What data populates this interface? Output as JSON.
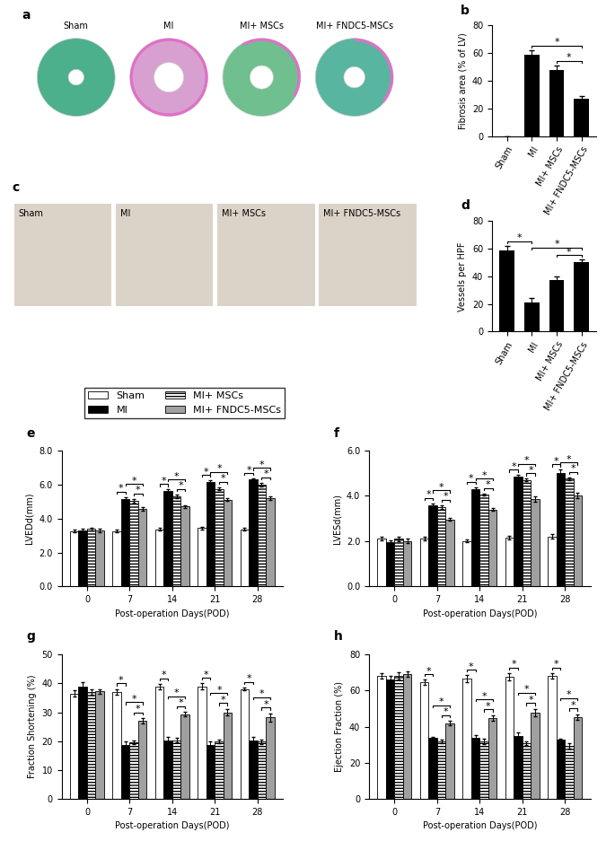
{
  "chart_data": [
    {
      "type": "image",
      "title": "a",
      "categories": [
        "Sham",
        "MI",
        "MI+ MSCs",
        "MI+ FNDC5-MSCs"
      ]
    },
    {
      "type": "bar",
      "title": "b",
      "ylabel": "Fibrosis area (% of LV)",
      "categories": [
        "Sham",
        "MI",
        "MI+ MSCs",
        "MI+ FNDC5-MSCs"
      ],
      "values": [
        0,
        59,
        48,
        27
      ],
      "errors": [
        0,
        3,
        3,
        2
      ],
      "color": "#000000",
      "ylim": [
        0,
        80
      ],
      "yticks": [
        0,
        20,
        40,
        60,
        80
      ],
      "annotations": [
        {
          "pair": [
            "MI+ MSCs",
            "MI+ FNDC5-MSCs"
          ],
          "label": "*"
        },
        {
          "pair": [
            "MI",
            "MI+ FNDC5-MSCs"
          ],
          "label": "*"
        }
      ]
    },
    {
      "type": "image",
      "title": "c",
      "categories": [
        "Sham",
        "MI",
        "MI+ MSCs",
        "MI+ FNDC5-MSCs"
      ]
    },
    {
      "type": "bar",
      "title": "d",
      "ylabel": "Vessels per HPF",
      "categories": [
        "Sham",
        "MI",
        "MI+ MSCs",
        "MI+ FNDC5-MSCs"
      ],
      "values": [
        59,
        21,
        37,
        50
      ],
      "errors": [
        3,
        3,
        3,
        2
      ],
      "color": "#000000",
      "ylim": [
        0,
        80
      ],
      "yticks": [
        0,
        20,
        40,
        60,
        80
      ],
      "annotations": [
        {
          "pair": [
            "Sham",
            "MI"
          ],
          "label": "*"
        },
        {
          "pair": [
            "MI+ MSCs",
            "MI+ FNDC5-MSCs"
          ],
          "label": "*"
        },
        {
          "pair": [
            "MI",
            "MI+ FNDC5-MSCs"
          ],
          "label": "*"
        }
      ]
    },
    {
      "type": "grouped_bar",
      "title": "e",
      "ylabel": "LVEDd(mm)",
      "xlabel": "Post-operation Days(POD)",
      "legend": "upper center",
      "categories": [
        "0",
        "7",
        "14",
        "21",
        "28"
      ],
      "series": [
        {
          "name": "Sham",
          "color": "#ffffff",
          "values": [
            3.25,
            3.25,
            3.35,
            3.45,
            3.35
          ],
          "errors": [
            0.08,
            0.08,
            0.08,
            0.08,
            0.08
          ]
        },
        {
          "name": "MI",
          "color": "#000000",
          "values": [
            3.3,
            5.15,
            5.6,
            6.15,
            6.3
          ],
          "errors": [
            0.1,
            0.1,
            0.1,
            0.1,
            0.05
          ]
        },
        {
          "name": "MI+ MSCs",
          "color": "#ffffff",
          "values": [
            3.4,
            5.05,
            5.3,
            5.75,
            6.0
          ],
          "errors": [
            0.08,
            0.1,
            0.12,
            0.1,
            0.1
          ]
        },
        {
          "name": "MI+ FNDC5-MSCs",
          "color": "#a0a0a0",
          "values": [
            3.3,
            4.55,
            4.7,
            5.1,
            5.2
          ],
          "errors": [
            0.1,
            0.1,
            0.1,
            0.08,
            0.1
          ]
        }
      ],
      "ylim": [
        0,
        8
      ],
      "yticks": [
        {
          "value": 0,
          "label": "0.0"
        },
        {
          "value": 2,
          "label": "2.0"
        },
        {
          "value": 4,
          "label": "4.0"
        },
        {
          "value": 6,
          "label": "6.0"
        },
        {
          "value": 8,
          "label": "8.0"
        }
      ],
      "annotations": [
        {
          "category": "7",
          "pair": [
            "Sham",
            "MI"
          ],
          "label": "*"
        },
        {
          "category": "7",
          "pair": [
            "MI+ MSCs",
            "MI+ FNDC5-MSCs"
          ],
          "label": "*"
        },
        {
          "category": "7",
          "pair": [
            "MI",
            "MI+ FNDC5-MSCs"
          ],
          "label": "*"
        },
        {
          "category": "14",
          "pair": [
            "Sham",
            "MI"
          ],
          "label": "*"
        },
        {
          "category": "14",
          "pair": [
            "MI+ MSCs",
            "MI+ FNDC5-MSCs"
          ],
          "label": "*"
        },
        {
          "category": "14",
          "pair": [
            "MI",
            "MI+ FNDC5-MSCs"
          ],
          "label": "*"
        },
        {
          "category": "21",
          "pair": [
            "Sham",
            "MI"
          ],
          "label": "*"
        },
        {
          "category": "21",
          "pair": [
            "MI+ MSCs",
            "MI+ FNDC5-MSCs"
          ],
          "label": "*"
        },
        {
          "category": "21",
          "pair": [
            "MI",
            "MI+ FNDC5-MSCs"
          ],
          "label": "*"
        },
        {
          "category": "28",
          "pair": [
            "Sham",
            "MI"
          ],
          "label": "*"
        },
        {
          "category": "28",
          "pair": [
            "MI+ MSCs",
            "MI+ FNDC5-MSCs"
          ],
          "label": "*"
        },
        {
          "category": "28",
          "pair": [
            "MI",
            "MI+ FNDC5-MSCs"
          ],
          "label": "*"
        }
      ]
    },
    {
      "type": "grouped_bar",
      "title": "f",
      "ylabel": "LVESd(mm)",
      "xlabel": "Post-operation Days(POD)",
      "categories": [
        "0",
        "7",
        "14",
        "21",
        "28"
      ],
      "series": [
        {
          "name": "Sham",
          "color": "#ffffff",
          "values": [
            2.1,
            2.1,
            2.0,
            2.15,
            2.2
          ],
          "errors": [
            0.08,
            0.08,
            0.06,
            0.08,
            0.1
          ]
        },
        {
          "name": "MI",
          "color": "#000000",
          "values": [
            1.95,
            3.6,
            4.3,
            4.85,
            5.0
          ],
          "errors": [
            0.08,
            0.06,
            0.08,
            0.06,
            0.15
          ]
        },
        {
          "name": "MI+ MSCs",
          "color": "#ffffff",
          "values": [
            2.1,
            3.5,
            4.05,
            4.7,
            4.75
          ],
          "errors": [
            0.1,
            0.08,
            0.05,
            0.05,
            0.06
          ]
        },
        {
          "name": "MI+ FNDC5-MSCs",
          "color": "#a0a0a0",
          "values": [
            2.0,
            2.95,
            3.4,
            3.85,
            4.0
          ],
          "errors": [
            0.1,
            0.06,
            0.06,
            0.12,
            0.12
          ]
        }
      ],
      "ylim": [
        0,
        6
      ],
      "yticks": [
        {
          "value": 0,
          "label": "0.0"
        },
        {
          "value": 2,
          "label": "2.0"
        },
        {
          "value": 4,
          "label": "4.0"
        },
        {
          "value": 6,
          "label": "6.0"
        }
      ],
      "annotations": [
        {
          "category": "7",
          "pair": [
            "Sham",
            "MI"
          ],
          "label": "*"
        },
        {
          "category": "7",
          "pair": [
            "MI+ MSCs",
            "MI+ FNDC5-MSCs"
          ],
          "label": "*"
        },
        {
          "category": "7",
          "pair": [
            "MI",
            "MI+ FNDC5-MSCs"
          ],
          "label": "*"
        },
        {
          "category": "14",
          "pair": [
            "Sham",
            "MI"
          ],
          "label": "*"
        },
        {
          "category": "14",
          "pair": [
            "MI+ MSCs",
            "MI+ FNDC5-MSCs"
          ],
          "label": "*"
        },
        {
          "category": "14",
          "pair": [
            "MI",
            "MI+ FNDC5-MSCs"
          ],
          "label": "*"
        },
        {
          "category": "21",
          "pair": [
            "Sham",
            "MI"
          ],
          "label": "*"
        },
        {
          "category": "21",
          "pair": [
            "MI+ MSCs",
            "MI+ FNDC5-MSCs"
          ],
          "label": "*"
        },
        {
          "category": "21",
          "pair": [
            "MI",
            "MI+ FNDC5-MSCs"
          ],
          "label": "*"
        },
        {
          "category": "28",
          "pair": [
            "Sham",
            "MI"
          ],
          "label": "*"
        },
        {
          "category": "28",
          "pair": [
            "MI+ MSCs",
            "MI+ FNDC5-MSCs"
          ],
          "label": "*"
        },
        {
          "category": "28",
          "pair": [
            "MI",
            "MI+ FNDC5-MSCs"
          ],
          "label": "*"
        }
      ]
    },
    {
      "type": "grouped_bar",
      "title": "g",
      "ylabel": "Fraction Shortening (%)",
      "xlabel": "Post-operation Days(POD)",
      "categories": [
        "0",
        "7",
        "14",
        "21",
        "28"
      ],
      "series": [
        {
          "name": "Sham",
          "color": "#ffffff",
          "values": [
            36.5,
            37,
            38.8,
            39,
            38
          ],
          "errors": [
            1,
            1,
            1,
            1,
            0.5
          ]
        },
        {
          "name": "MI",
          "color": "#000000",
          "values": [
            39,
            18.8,
            20.2,
            18.8,
            20.2
          ],
          "errors": [
            1.5,
            1,
            1.2,
            1.2,
            1.2
          ]
        },
        {
          "name": "MI+ MSCs",
          "color": "#ffffff",
          "values": [
            37,
            19.7,
            20.3,
            20,
            19.8
          ],
          "errors": [
            0.8,
            0.6,
            0.8,
            0.6,
            0.8
          ]
        },
        {
          "name": "MI+ FNDC5-MSCs",
          "color": "#a0a0a0",
          "values": [
            37.2,
            27,
            29.3,
            30,
            28.2
          ],
          "errors": [
            0.8,
            1,
            0.8,
            1.2,
            1.5
          ]
        }
      ],
      "ylim": [
        0,
        50
      ],
      "yticks": [
        0,
        10,
        20,
        30,
        40,
        50
      ],
      "annotations": [
        {
          "category": "7",
          "pair": [
            "Sham",
            "MI"
          ],
          "label": "*"
        },
        {
          "category": "7",
          "pair": [
            "MI+ MSCs",
            "MI+ FNDC5-MSCs"
          ],
          "label": "*"
        },
        {
          "category": "7",
          "pair": [
            "MI",
            "MI+ FNDC5-MSCs"
          ],
          "label": "*"
        },
        {
          "category": "14",
          "pair": [
            "Sham",
            "MI"
          ],
          "label": "*"
        },
        {
          "category": "14",
          "pair": [
            "MI+ MSCs",
            "MI+ FNDC5-MSCs"
          ],
          "label": "*"
        },
        {
          "category": "14",
          "pair": [
            "MI",
            "MI+ FNDC5-MSCs"
          ],
          "label": "*"
        },
        {
          "category": "21",
          "pair": [
            "Sham",
            "MI"
          ],
          "label": "*"
        },
        {
          "category": "21",
          "pair": [
            "MI+ MSCs",
            "MI+ FNDC5-MSCs"
          ],
          "label": "*"
        },
        {
          "category": "21",
          "pair": [
            "MI",
            "MI+ FNDC5-MSCs"
          ],
          "label": "*"
        },
        {
          "category": "28",
          "pair": [
            "Sham",
            "MI"
          ],
          "label": "*"
        },
        {
          "category": "28",
          "pair": [
            "MI+ MSCs",
            "MI+ FNDC5-MSCs"
          ],
          "label": "*"
        },
        {
          "category": "28",
          "pair": [
            "MI",
            "MI+ FNDC5-MSCs"
          ],
          "label": "*"
        }
      ]
    },
    {
      "type": "grouped_bar",
      "title": "h",
      "ylabel": "Ejection Fraction (%)",
      "xlabel": "Post-operation Days(POD)",
      "categories": [
        "0",
        "7",
        "14",
        "21",
        "28"
      ],
      "series": [
        {
          "name": "Sham",
          "color": "#ffffff",
          "values": [
            68,
            64.5,
            66.5,
            67.5,
            68
          ],
          "errors": [
            1.5,
            1.5,
            2,
            2,
            1.5
          ]
        },
        {
          "name": "MI",
          "color": "#000000",
          "values": [
            66,
            34,
            34,
            35,
            33
          ],
          "errors": [
            2,
            0.5,
            1.5,
            2,
            0.5
          ]
        },
        {
          "name": "MI+ MSCs",
          "color": "#ffffff",
          "values": [
            68,
            32,
            32,
            31,
            29.5
          ],
          "errors": [
            2,
            1,
            1.5,
            1,
            1.5
          ]
        },
        {
          "name": "MI+ FNDC5-MSCs",
          "color": "#a0a0a0",
          "values": [
            69,
            42,
            45,
            48,
            45.5
          ],
          "errors": [
            1.5,
            1.2,
            1.5,
            2,
            1.5
          ]
        }
      ],
      "ylim": [
        0,
        80
      ],
      "yticks": [
        0,
        20,
        40,
        60,
        80
      ],
      "annotations": [
        {
          "category": "7",
          "pair": [
            "Sham",
            "MI"
          ],
          "label": "*"
        },
        {
          "category": "7",
          "pair": [
            "MI+ MSCs",
            "MI+ FNDC5-MSCs"
          ],
          "label": "*"
        },
        {
          "category": "7",
          "pair": [
            "MI",
            "MI+ FNDC5-MSCs"
          ],
          "label": "*"
        },
        {
          "category": "14",
          "pair": [
            "Sham",
            "MI"
          ],
          "label": "*"
        },
        {
          "category": "14",
          "pair": [
            "MI+ MSCs",
            "MI+ FNDC5-MSCs"
          ],
          "label": "*"
        },
        {
          "category": "14",
          "pair": [
            "MI",
            "MI+ FNDC5-MSCs"
          ],
          "label": "*"
        },
        {
          "category": "21",
          "pair": [
            "Sham",
            "MI"
          ],
          "label": "*"
        },
        {
          "category": "21",
          "pair": [
            "MI+ MSCs",
            "MI+ FNDC5-MSCs"
          ],
          "label": "*"
        },
        {
          "category": "21",
          "pair": [
            "MI",
            "MI+ FNDC5-MSCs"
          ],
          "label": "*"
        },
        {
          "category": "28",
          "pair": [
            "Sham",
            "MI"
          ],
          "label": "*"
        },
        {
          "category": "28",
          "pair": [
            "MI+ MSCs",
            "MI+ FNDC5-MSCs"
          ],
          "label": "*"
        },
        {
          "category": "28",
          "pair": [
            "MI",
            "MI+ FNDC5-MSCs"
          ],
          "label": "*"
        }
      ]
    }
  ]
}
